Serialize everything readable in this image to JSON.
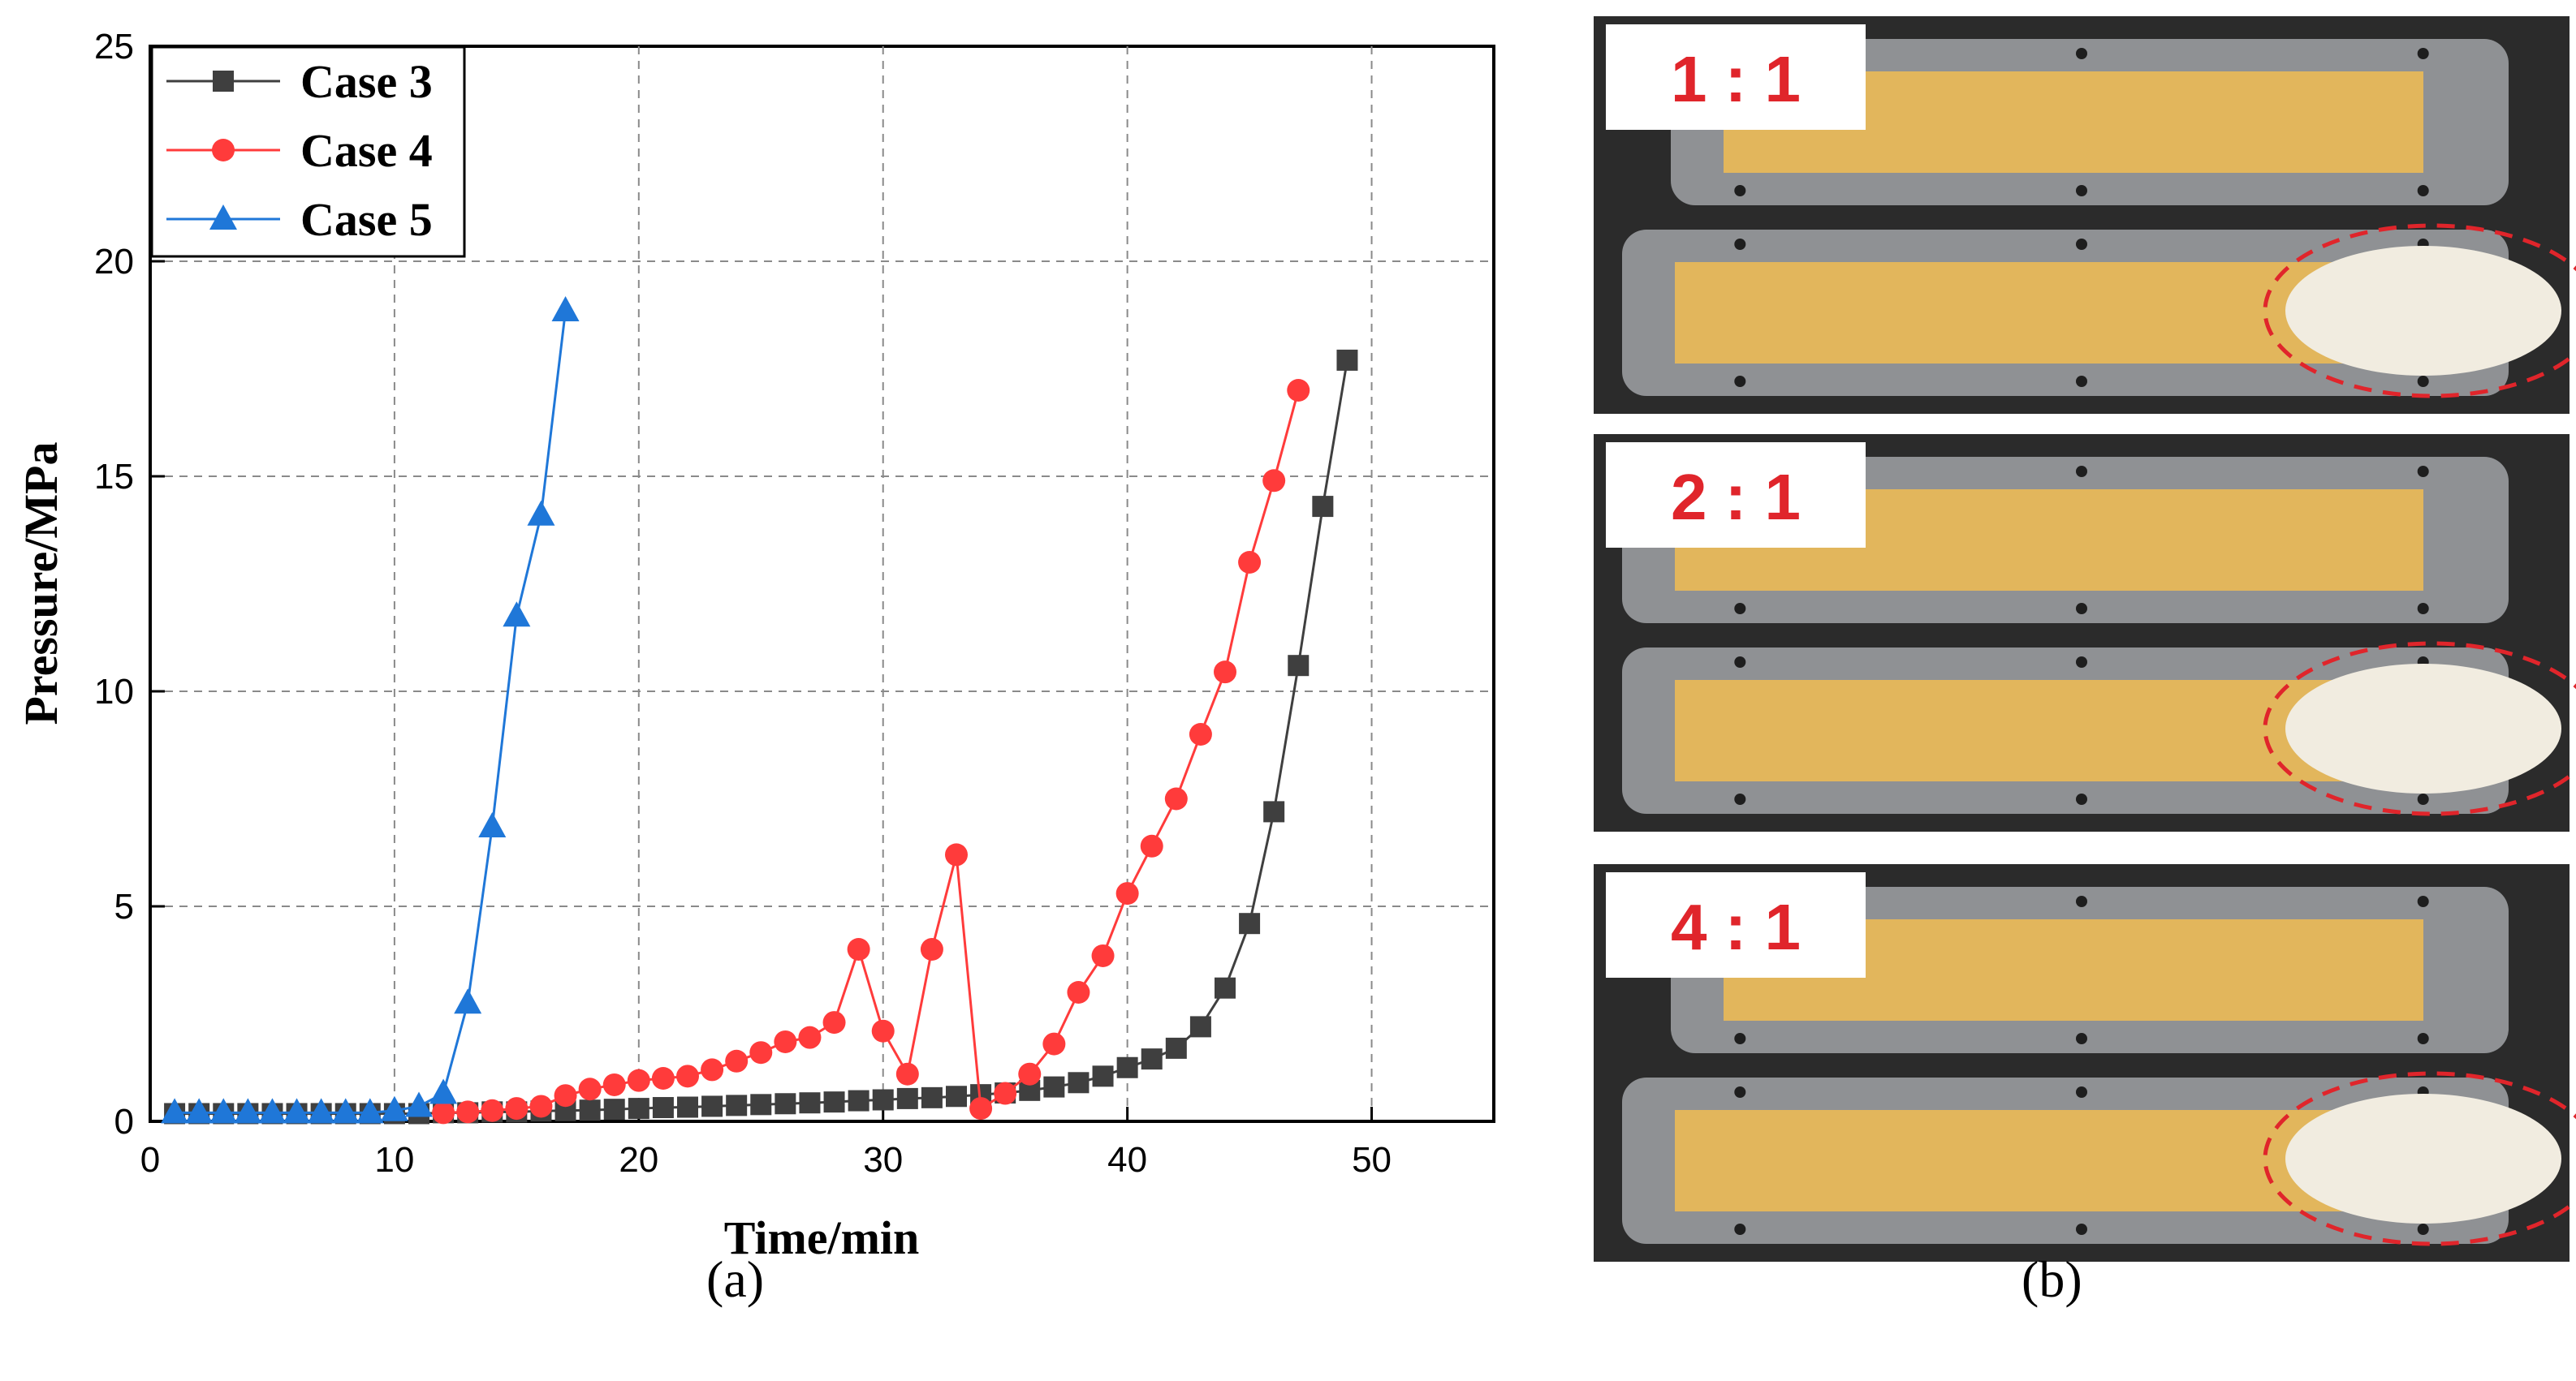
{
  "panel_a": {
    "caption": "(a)",
    "chart_data": {
      "type": "line",
      "title": "",
      "xlabel": "Time/min",
      "ylabel": "Pressure/MPa",
      "xlim": [
        0,
        55
      ],
      "ylim": [
        0,
        25
      ],
      "x_ticks": [
        0,
        10,
        20,
        30,
        40,
        50
      ],
      "y_ticks": [
        0,
        5,
        10,
        15,
        20,
        25
      ],
      "grid": true,
      "legend_position": "top-left",
      "series": [
        {
          "name": "Case 3",
          "color": "#3f3f3f",
          "marker": "square",
          "x": [
            1,
            2,
            3,
            4,
            5,
            6,
            7,
            8,
            9,
            10,
            11,
            12,
            13,
            14,
            15,
            16,
            17,
            18,
            19,
            20,
            21,
            22,
            23,
            24,
            25,
            26,
            27,
            28,
            29,
            30,
            31,
            32,
            33,
            34,
            35,
            36,
            37,
            38,
            39,
            40,
            41,
            42,
            43,
            44,
            45,
            46,
            47,
            48,
            49
          ],
          "y": [
            0.18,
            0.18,
            0.18,
            0.18,
            0.18,
            0.18,
            0.18,
            0.18,
            0.18,
            0.18,
            0.18,
            0.2,
            0.2,
            0.22,
            0.22,
            0.24,
            0.25,
            0.26,
            0.28,
            0.3,
            0.32,
            0.33,
            0.35,
            0.37,
            0.39,
            0.41,
            0.43,
            0.45,
            0.48,
            0.5,
            0.53,
            0.55,
            0.58,
            0.62,
            0.66,
            0.72,
            0.8,
            0.9,
            1.05,
            1.25,
            1.45,
            1.7,
            2.2,
            3.1,
            4.6,
            7.2,
            10.6,
            14.3,
            17.7
          ]
        },
        {
          "name": "Case 4",
          "color": "#ff3b3b",
          "marker": "circle",
          "x": [
            12,
            13,
            14,
            15,
            16,
            17,
            18,
            19,
            20,
            21,
            22,
            23,
            24,
            25,
            26,
            27,
            28,
            29,
            30,
            31,
            32,
            33,
            34,
            35,
            36,
            37,
            38,
            39,
            40,
            41,
            42,
            43,
            44,
            45,
            46,
            47
          ],
          "y": [
            0.2,
            0.22,
            0.25,
            0.3,
            0.35,
            0.6,
            0.75,
            0.85,
            0.95,
            1.0,
            1.05,
            1.2,
            1.4,
            1.6,
            1.85,
            1.95,
            2.3,
            4.0,
            2.1,
            1.1,
            4.0,
            6.2,
            0.3,
            0.65,
            1.1,
            1.8,
            3.0,
            3.85,
            5.3,
            6.4,
            7.5,
            9.0,
            10.45,
            13.0,
            14.9,
            17.0
          ]
        },
        {
          "name": "Case 5",
          "color": "#1f77d8",
          "marker": "triangle",
          "x": [
            1,
            2,
            3,
            4,
            5,
            6,
            7,
            8,
            9,
            10,
            11,
            12,
            13,
            14,
            15,
            16,
            17
          ],
          "y": [
            0.2,
            0.2,
            0.2,
            0.2,
            0.2,
            0.2,
            0.2,
            0.2,
            0.2,
            0.25,
            0.35,
            0.65,
            2.75,
            6.85,
            11.75,
            14.1,
            18.85
          ]
        }
      ]
    }
  },
  "panel_b": {
    "caption": "(b)",
    "trays": [
      {
        "label": "1 : 1"
      },
      {
        "label": "2 : 1"
      },
      {
        "label": "4 : 1"
      }
    ],
    "label_color": "#e0252b",
    "sample_color": "#e2b65c",
    "tray_color": "#8f9194"
  }
}
